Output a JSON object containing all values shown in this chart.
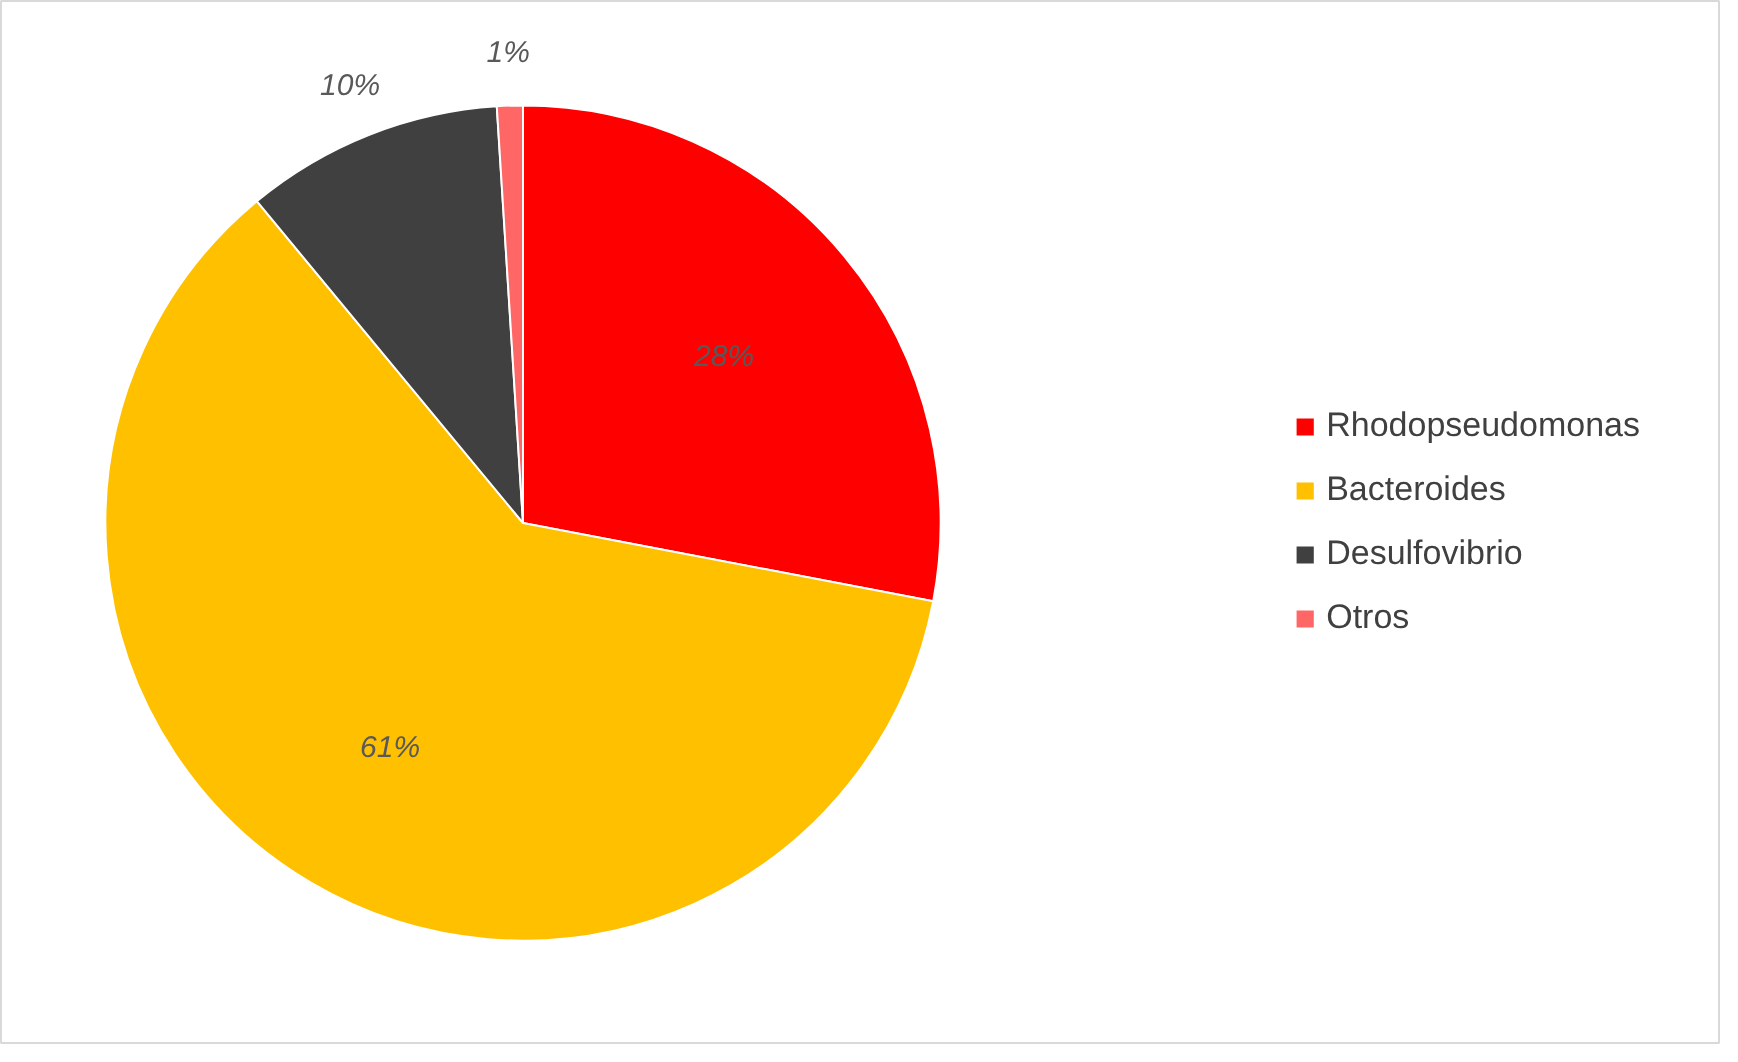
{
  "chart_data": {
    "type": "pie",
    "categories": [
      "Rhodopseudomonas",
      "Bacteroides",
      "Desulfovibrio",
      "Otros"
    ],
    "values": [
      28,
      61,
      10,
      1
    ],
    "colors": [
      "#ff0000",
      "#ffc000",
      "#404040",
      "#ff6666"
    ],
    "value_labels": [
      "28%",
      "61%",
      "10%",
      "1%"
    ],
    "legend": "right"
  }
}
